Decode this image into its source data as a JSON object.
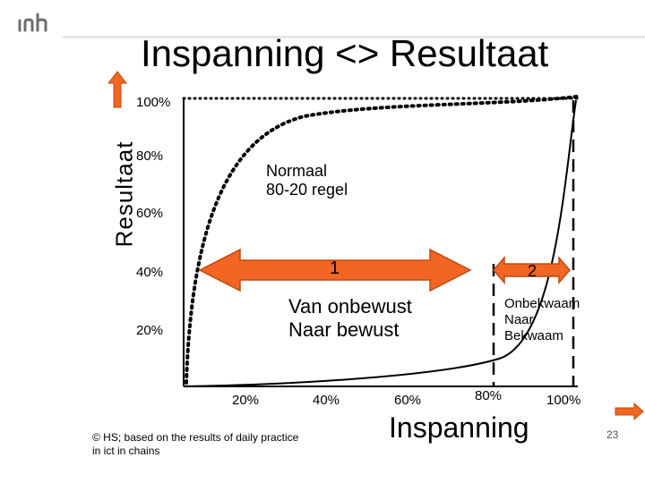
{
  "title": "Inspanning <> Resultaat",
  "y_axis": {
    "label": "Resultaat",
    "ticks": [
      "100%",
      "80%",
      "60%",
      "40%",
      "20%"
    ]
  },
  "x_axis": {
    "label": "Inspanning",
    "ticks": [
      "20%",
      "40%",
      "60%",
      "80%",
      "100%"
    ]
  },
  "annotations": {
    "curve_label": [
      "Normaal",
      "80-20 regel"
    ],
    "arrow1_number": "1",
    "arrow1_text": [
      "Van onbewust",
      "Naar bewust"
    ],
    "arrow2_number": "2",
    "arrow2_text": [
      "Onbekwaam",
      "Naar",
      "Bekwaam"
    ]
  },
  "footer": "© HS; based on the results of daily practice in ict in chains",
  "page_number": "23",
  "colors": {
    "accent_orange": "#f26522",
    "arrow_fill": "#f26522",
    "arrow_stroke": "#c04a10"
  },
  "icons": {
    "logo": "hs-logo-icon",
    "up_arrow": "up-arrow-icon",
    "right_arrow": "right-arrow-icon"
  }
}
